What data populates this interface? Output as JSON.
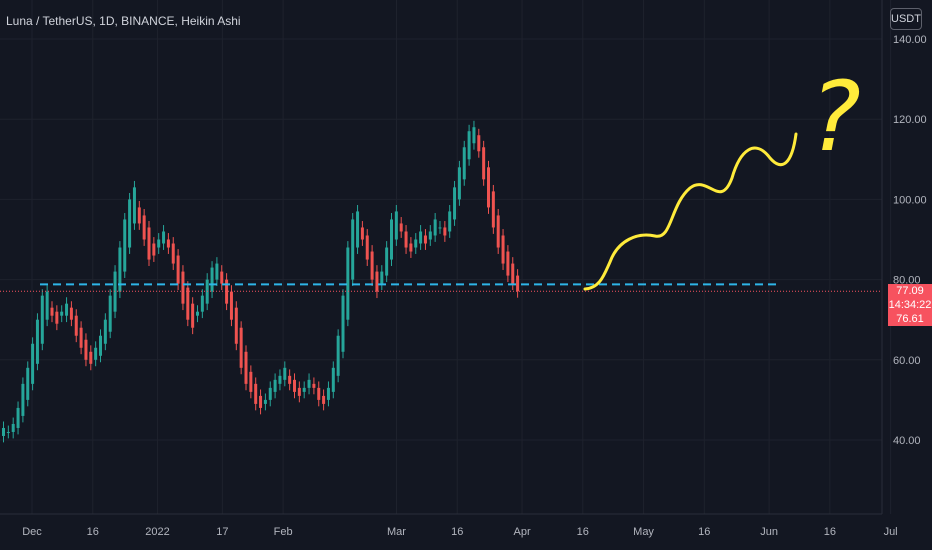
{
  "header": {
    "title": "Luna / TetherUS, 1D, BINANCE, Heikin Ashi",
    "currency": "USDT"
  },
  "price_labels": {
    "last": "77.09",
    "countdown": "14:34:22",
    "prev": "76.61"
  },
  "colors": {
    "background": "#131722",
    "up": "#26a69a",
    "down": "#ef5350",
    "support_line": "#2eb6e8",
    "annotation": "#ffeb3b",
    "price_line": "#f7525f"
  },
  "annotation": {
    "wave": "yellow hand-drawn wavy arrow",
    "mark": "?"
  },
  "chart_data": {
    "type": "candlestick",
    "style": "Heikin Ashi",
    "ylim": [
      30,
      142
    ],
    "yticks": [
      "140.00",
      "120.00",
      "100.00",
      "80.00",
      "60.00",
      "40.00"
    ],
    "ytick_values": [
      140,
      120,
      100,
      80,
      60,
      40
    ],
    "xticks": [
      "Dec",
      "16",
      "2022",
      "17",
      "Feb",
      "Mar",
      "16",
      "Apr",
      "16",
      "May",
      "16",
      "Jun",
      "16",
      "Jul"
    ],
    "xtick_days": [
      0,
      15,
      31,
      47,
      62,
      90,
      105,
      121,
      136,
      151,
      166,
      182,
      197,
      212
    ],
    "support_level": 78.8,
    "last_price": 77.09,
    "series": [
      {
        "o": 41,
        "c": 43
      },
      {
        "o": 42,
        "c": 42
      },
      {
        "o": 42,
        "c": 44
      },
      {
        "o": 43,
        "c": 48
      },
      {
        "o": 46,
        "c": 54
      },
      {
        "o": 50,
        "c": 58
      },
      {
        "o": 54,
        "c": 64
      },
      {
        "o": 59,
        "c": 70
      },
      {
        "o": 64,
        "c": 76
      },
      {
        "o": 70,
        "c": 77
      },
      {
        "o": 73,
        "c": 71
      },
      {
        "o": 72,
        "c": 69
      },
      {
        "o": 71,
        "c": 72
      },
      {
        "o": 71,
        "c": 74
      },
      {
        "o": 73,
        "c": 70
      },
      {
        "o": 71,
        "c": 66
      },
      {
        "o": 68,
        "c": 63
      },
      {
        "o": 65,
        "c": 60
      },
      {
        "o": 62,
        "c": 59
      },
      {
        "o": 60,
        "c": 63
      },
      {
        "o": 61,
        "c": 66
      },
      {
        "o": 64,
        "c": 70
      },
      {
        "o": 67,
        "c": 76
      },
      {
        "o": 72,
        "c": 82
      },
      {
        "o": 77,
        "c": 88
      },
      {
        "o": 82,
        "c": 95
      },
      {
        "o": 88,
        "c": 100
      },
      {
        "o": 94,
        "c": 103
      },
      {
        "o": 98,
        "c": 94
      },
      {
        "o": 96,
        "c": 90
      },
      {
        "o": 93,
        "c": 85
      },
      {
        "o": 89,
        "c": 86
      },
      {
        "o": 88,
        "c": 90
      },
      {
        "o": 89,
        "c": 92
      },
      {
        "o": 90,
        "c": 88
      },
      {
        "o": 89,
        "c": 84
      },
      {
        "o": 86,
        "c": 79
      },
      {
        "o": 82,
        "c": 74
      },
      {
        "o": 78,
        "c": 70
      },
      {
        "o": 74,
        "c": 68
      },
      {
        "o": 71,
        "c": 72
      },
      {
        "o": 72,
        "c": 76
      },
      {
        "o": 74,
        "c": 80
      },
      {
        "o": 77,
        "c": 83
      },
      {
        "o": 80,
        "c": 84
      },
      {
        "o": 82,
        "c": 79
      },
      {
        "o": 80,
        "c": 74
      },
      {
        "o": 77,
        "c": 70
      },
      {
        "o": 73,
        "c": 64
      },
      {
        "o": 68,
        "c": 58
      },
      {
        "o": 62,
        "c": 54
      },
      {
        "o": 57,
        "c": 52
      },
      {
        "o": 54,
        "c": 49
      },
      {
        "o": 51,
        "c": 48
      },
      {
        "o": 49,
        "c": 50
      },
      {
        "o": 50,
        "c": 53
      },
      {
        "o": 52,
        "c": 55
      },
      {
        "o": 54,
        "c": 56
      },
      {
        "o": 55,
        "c": 58
      },
      {
        "o": 56,
        "c": 54
      },
      {
        "o": 55,
        "c": 52
      },
      {
        "o": 53,
        "c": 51
      },
      {
        "o": 52,
        "c": 53
      },
      {
        "o": 53,
        "c": 55
      },
      {
        "o": 54,
        "c": 53
      },
      {
        "o": 53,
        "c": 50
      },
      {
        "o": 51,
        "c": 49
      },
      {
        "o": 50,
        "c": 53
      },
      {
        "o": 52,
        "c": 58
      },
      {
        "o": 56,
        "c": 66
      },
      {
        "o": 62,
        "c": 76
      },
      {
        "o": 70,
        "c": 88
      },
      {
        "o": 80,
        "c": 95
      },
      {
        "o": 88,
        "c": 97
      },
      {
        "o": 93,
        "c": 90
      },
      {
        "o": 91,
        "c": 85
      },
      {
        "o": 87,
        "c": 80
      },
      {
        "o": 82,
        "c": 77
      },
      {
        "o": 79,
        "c": 82
      },
      {
        "o": 81,
        "c": 88
      },
      {
        "o": 85,
        "c": 95
      },
      {
        "o": 90,
        "c": 97
      },
      {
        "o": 94,
        "c": 92
      },
      {
        "o": 92,
        "c": 88
      },
      {
        "o": 89,
        "c": 87
      },
      {
        "o": 88,
        "c": 90
      },
      {
        "o": 89,
        "c": 92
      },
      {
        "o": 91,
        "c": 89
      },
      {
        "o": 90,
        "c": 92
      },
      {
        "o": 91,
        "c": 95
      },
      {
        "o": 93,
        "c": 93
      },
      {
        "o": 93,
        "c": 91
      },
      {
        "o": 92,
        "c": 97
      },
      {
        "o": 95,
        "c": 103
      },
      {
        "o": 100,
        "c": 108
      },
      {
        "o": 105,
        "c": 113
      },
      {
        "o": 110,
        "c": 117
      },
      {
        "o": 114,
        "c": 118
      },
      {
        "o": 116,
        "c": 112
      },
      {
        "o": 113,
        "c": 105
      },
      {
        "o": 108,
        "c": 98
      },
      {
        "o": 102,
        "c": 93
      },
      {
        "o": 96,
        "c": 88
      },
      {
        "o": 91,
        "c": 84
      },
      {
        "o": 87,
        "c": 81
      },
      {
        "o": 84,
        "c": 79
      },
      {
        "o": 81,
        "c": 77.09
      }
    ]
  }
}
